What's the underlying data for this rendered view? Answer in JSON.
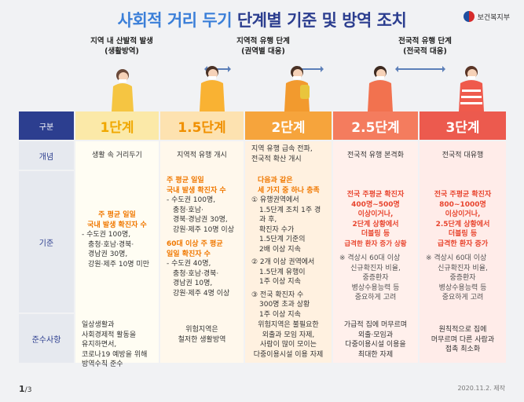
{
  "title": {
    "part1": "사회적 거리 두기",
    "part2": "단계별 기준 및 방역 조치"
  },
  "ministry": "보건복지부",
  "phases": [
    {
      "line1": "지역 내 산발적 발생",
      "line2": "(생활방역)"
    },
    {
      "line1": "지역적 유행 단계",
      "line2": "(권역별 대응)"
    },
    {
      "line1": "전국적 유행 단계",
      "line2": "(전국적 대응)"
    }
  ],
  "row_labels": {
    "header": "구분",
    "concept": "개념",
    "criteria": "기준",
    "compliance": "준수사항"
  },
  "levels": [
    {
      "name": "1단계",
      "head_bg": "#fbe9a8",
      "head_color": "#f0a800",
      "body_bg": "#fffdf3",
      "concept": "생활 속 거리두기",
      "criteria_hl1": "주 평균 일일",
      "criteria_hl2": "국내 발생 확진자 수",
      "criteria_items": [
        "- 수도권 100명,",
        "충청·호남·경북·",
        "경남권 30명,",
        "강원·제주 10명 미만"
      ],
      "compliance": [
        "일상생활과",
        "사회경제적 활동을",
        "유지하면서,",
        "코로나19 예방을 위해",
        "방역수칙 준수"
      ]
    },
    {
      "name": "1.5단계",
      "head_bg": "#fde2b0",
      "head_color": "#f09000",
      "body_bg": "#fff8ec",
      "concept": "지역적 유행 개시",
      "criteria_hl1": "주 평균 일일",
      "criteria_hl2": "국내 발생 확진자 수",
      "criteria_items": [
        "- 수도권 100명,",
        "충청·호남·",
        "경북·경남권 30명,",
        "강원·제주 10명 이상"
      ],
      "criteria2_hl1": "60대 이상 주 평균",
      "criteria2_hl2": "일일 확진자 수",
      "criteria2_items": [
        "- 수도권 40명,",
        "충청·호남·경북·",
        "경남권 10명,",
        "강원·제주 4명 이상"
      ],
      "compliance": [
        "위험지역은",
        "철저한 생활방역"
      ]
    },
    {
      "name": "2단계",
      "head_bg": "#f6a43c",
      "head_color": "#ffffff",
      "body_bg": "#fff1e0",
      "concept1": "지역 유행 급속 전파,",
      "concept2": "전국적 확산 개시",
      "criteria_hl1": "다음과 같은",
      "criteria_hl2": "세 가지 중 하나 충족",
      "criteria_items": [
        "① 유행권역에서",
        "1.5단계 조치 1주 경과 후,",
        "확진자 수가",
        "1.5단계 기준의",
        "2배 이상 지속",
        "② 2개 이상 권역에서",
        "1.5단계 유행이",
        "1주 이상 지속",
        "③ 전국 확진자 수",
        "300명 초과 상황",
        "1주 이상 지속"
      ],
      "compliance": [
        "위험지역은 불필요한",
        "외출과 모임 자제,",
        "사람이 많이 모이는",
        "다중이용시설 이용 자제"
      ]
    },
    {
      "name": "2.5단계",
      "head_bg": "#f47c5e",
      "head_color": "#ffffff",
      "body_bg": "#fff0ec",
      "concept": "전국적 유행 본격화",
      "criteria_hl": [
        "전국 주평균 확진자",
        "400명~500명",
        "이상이거나,",
        "2단계 상황에서",
        "더블링 등",
        "급격한 환자 증가 상황"
      ],
      "criteria_note": [
        "※ 격상시 60대 이상",
        "신규확진자 비율,",
        "중증환자",
        "병상수용능력 등",
        "중요하게 고려"
      ],
      "compliance": [
        "가급적 집에 머무르며",
        "외출·모임과",
        "다중이용시설 이용을",
        "최대한 자제"
      ]
    },
    {
      "name": "3단계",
      "head_bg": "#ec5a4e",
      "head_color": "#ffffff",
      "body_bg": "#ffece9",
      "concept": "전국적 대유행",
      "criteria_hl": [
        "전국 주평균 확진자",
        "800~1000명",
        "이상이거나,",
        "2.5단계 상황에서",
        "더블링 등",
        "급격한 환자 증가"
      ],
      "criteria_note": [
        "※ 격상시 60대 이상",
        "신규확진자 비율,",
        "중증환자",
        "병상수용능력 등",
        "중요하게 고려"
      ],
      "compliance": [
        "원칙적으로 집에",
        "머무르며 다른 사람과",
        "접촉 최소화"
      ]
    }
  ],
  "colors": {
    "title": "#2c3e8f",
    "accent_orange": "#f07800",
    "accent_red": "#e8452f",
    "row_label": "#2c3e8f"
  },
  "footer": {
    "page": "1",
    "total": "/3",
    "date": "2020.11.2. 제작"
  }
}
